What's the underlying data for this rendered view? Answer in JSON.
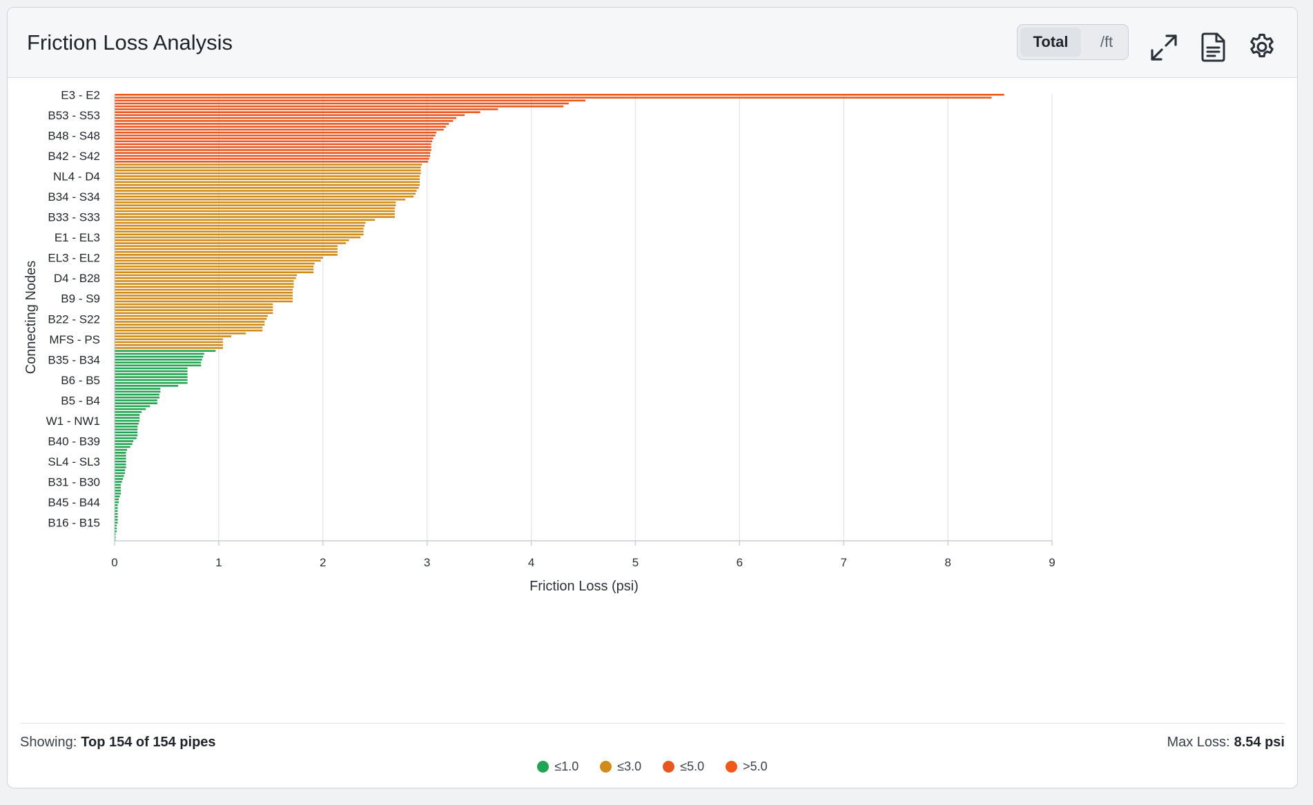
{
  "header": {
    "title": "Friction Loss Analysis",
    "toggle": {
      "options": [
        "Total",
        "/ft"
      ],
      "selected": "Total"
    },
    "icons": [
      "expand-icon",
      "document-icon",
      "gear-icon"
    ]
  },
  "footer": {
    "showing_label": "Showing:",
    "showing_value": "Top 154 of 154 pipes",
    "max_label": "Max Loss:",
    "max_value": "8.54 psi"
  },
  "legend": [
    {
      "label": "≤1.0",
      "color": "#22a452"
    },
    {
      "label": "≤3.0",
      "color": "#d08c1a"
    },
    {
      "label": "≤5.0",
      "color": "#e8571f"
    },
    {
      "label": ">5.0",
      "color": "#ef5a1a"
    }
  ],
  "colors": {
    "le1": "#22a452",
    "le3": "#d08c1a",
    "le5": "#e8571f",
    "gt5": "#ef5a1a",
    "grid": "#e3e6ea",
    "axis": "#c8cdd3"
  },
  "chart_data": {
    "type": "bar",
    "orientation": "horizontal",
    "title": "",
    "xlabel": "Friction Loss (psi)",
    "ylabel": "Connecting Nodes",
    "xlim": [
      0,
      9
    ],
    "x_ticks": [
      0,
      1,
      2,
      3,
      4,
      5,
      6,
      7,
      8,
      9
    ],
    "grid": true,
    "category_tick_labels": [
      "E3 - E2",
      "B53 - S53",
      "B48 - S48",
      "B42 - S42",
      "NL4 - D4",
      "B34 - S34",
      "B33 - S33",
      "E1 - EL3",
      "EL3 - EL2",
      "D4 - B28",
      "B9 - S9",
      "B22 - S22",
      "MFS - PS",
      "B35 - B34",
      "B6 - B5",
      "B5 - B4",
      "W1 - NW1",
      "B40 - B39",
      "SL4 - SL3",
      "B31 - B30",
      "B45 - B44",
      "B16 - B15"
    ],
    "tick_every": 7,
    "values": [
      8.54,
      8.42,
      4.52,
      4.36,
      4.31,
      3.68,
      3.51,
      3.36,
      3.28,
      3.25,
      3.21,
      3.18,
      3.16,
      3.09,
      3.08,
      3.06,
      3.05,
      3.04,
      3.04,
      3.04,
      3.03,
      3.03,
      3.02,
      3.01,
      2.95,
      2.94,
      2.94,
      2.94,
      2.93,
      2.93,
      2.93,
      2.93,
      2.92,
      2.9,
      2.89,
      2.87,
      2.79,
      2.7,
      2.7,
      2.69,
      2.69,
      2.69,
      2.69,
      2.5,
      2.41,
      2.4,
      2.39,
      2.39,
      2.39,
      2.36,
      2.25,
      2.22,
      2.14,
      2.14,
      2.14,
      2.14,
      2.0,
      1.98,
      1.92,
      1.91,
      1.91,
      1.91,
      1.75,
      1.74,
      1.72,
      1.72,
      1.72,
      1.71,
      1.71,
      1.71,
      1.71,
      1.71,
      1.52,
      1.52,
      1.52,
      1.52,
      1.47,
      1.46,
      1.44,
      1.44,
      1.42,
      1.42,
      1.26,
      1.12,
      1.04,
      1.04,
      1.04,
      1.04,
      0.97,
      0.86,
      0.85,
      0.84,
      0.83,
      0.83,
      0.7,
      0.7,
      0.7,
      0.7,
      0.7,
      0.7,
      0.61,
      0.44,
      0.44,
      0.43,
      0.43,
      0.41,
      0.41,
      0.34,
      0.3,
      0.26,
      0.24,
      0.24,
      0.24,
      0.23,
      0.22,
      0.22,
      0.22,
      0.22,
      0.21,
      0.18,
      0.17,
      0.15,
      0.12,
      0.11,
      0.11,
      0.11,
      0.11,
      0.11,
      0.11,
      0.1,
      0.1,
      0.09,
      0.08,
      0.07,
      0.06,
      0.06,
      0.06,
      0.06,
      0.05,
      0.04,
      0.04,
      0.03,
      0.03,
      0.03,
      0.03,
      0.03,
      0.03,
      0.03,
      0.02,
      0.02,
      0.02,
      0.01,
      0.01,
      0.01
    ]
  }
}
